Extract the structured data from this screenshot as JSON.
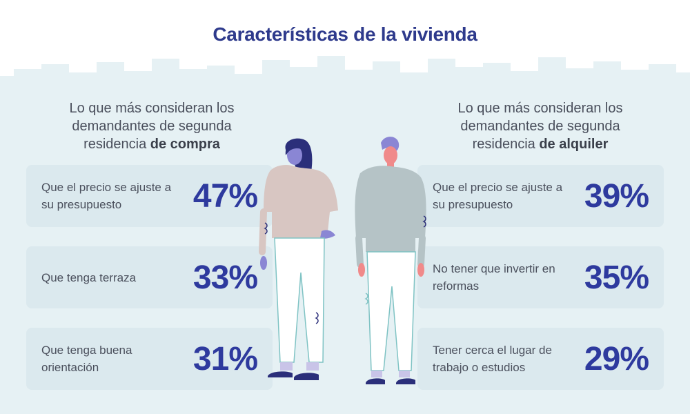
{
  "title": "Características de la vivienda",
  "left": {
    "heading_line1": "Lo que más consideran los",
    "heading_line2": "demandantes de segunda",
    "heading_line3_pre": "residencia ",
    "heading_line3_bold": "de compra",
    "cards": [
      {
        "label": "Que el precio se ajuste a su presupuesto",
        "value": "47%"
      },
      {
        "label": "Que tenga terraza",
        "value": "33%"
      },
      {
        "label": "Que tenga buena orientación",
        "value": "31%"
      }
    ]
  },
  "right": {
    "heading_line1": "Lo que más consideran los",
    "heading_line2": "demandantes de segunda",
    "heading_line3_pre": "residencia ",
    "heading_line3_bold": "de alquiler",
    "cards": [
      {
        "label": "Que el precio se ajuste a su presupuesto",
        "value": "39%"
      },
      {
        "label": "No tener que invertir en reformas",
        "value": "35%"
      },
      {
        "label": "Tener cerca el lugar de trabajo o estudios",
        "value": "29%"
      }
    ]
  },
  "colors": {
    "title": "#2e3a8c",
    "accent": "#2e3a9e",
    "card_bg": "#dbe9ee",
    "skyline": "#e4f0f3"
  }
}
